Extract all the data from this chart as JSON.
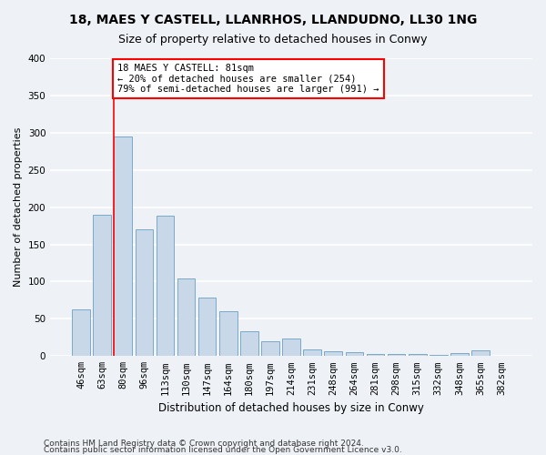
{
  "title": "18, MAES Y CASTELL, LLANRHOS, LLANDUDNO, LL30 1NG",
  "subtitle": "Size of property relative to detached houses in Conwy",
  "xlabel": "Distribution of detached houses by size in Conwy",
  "ylabel": "Number of detached properties",
  "categories": [
    "46sqm",
    "63sqm",
    "80sqm",
    "96sqm",
    "113sqm",
    "130sqm",
    "147sqm",
    "164sqm",
    "180sqm",
    "197sqm",
    "214sqm",
    "231sqm",
    "248sqm",
    "264sqm",
    "281sqm",
    "298sqm",
    "315sqm",
    "332sqm",
    "348sqm",
    "365sqm",
    "382sqm"
  ],
  "values": [
    63,
    190,
    295,
    170,
    188,
    104,
    78,
    60,
    33,
    20,
    24,
    9,
    7,
    5,
    3,
    3,
    3,
    1,
    4,
    8,
    0
  ],
  "bar_color": "#c8d8e8",
  "bar_edge_color": "#7aaac8",
  "vline_x_index": 2,
  "vline_color": "red",
  "annotation_text": "18 MAES Y CASTELL: 81sqm\n← 20% of detached houses are smaller (254)\n79% of semi-detached houses are larger (991) →",
  "annotation_box_color": "white",
  "annotation_box_edge": "red",
  "ylim": [
    0,
    400
  ],
  "yticks": [
    0,
    50,
    100,
    150,
    200,
    250,
    300,
    350,
    400
  ],
  "footer1": "Contains HM Land Registry data © Crown copyright and database right 2024.",
  "footer2": "Contains public sector information licensed under the Open Government Licence v3.0.",
  "background_color": "#eef2f7",
  "grid_color": "white",
  "title_fontsize": 10,
  "subtitle_fontsize": 9,
  "xlabel_fontsize": 8.5,
  "ylabel_fontsize": 8,
  "tick_fontsize": 7.5,
  "annotation_fontsize": 7.5,
  "footer_fontsize": 6.5
}
